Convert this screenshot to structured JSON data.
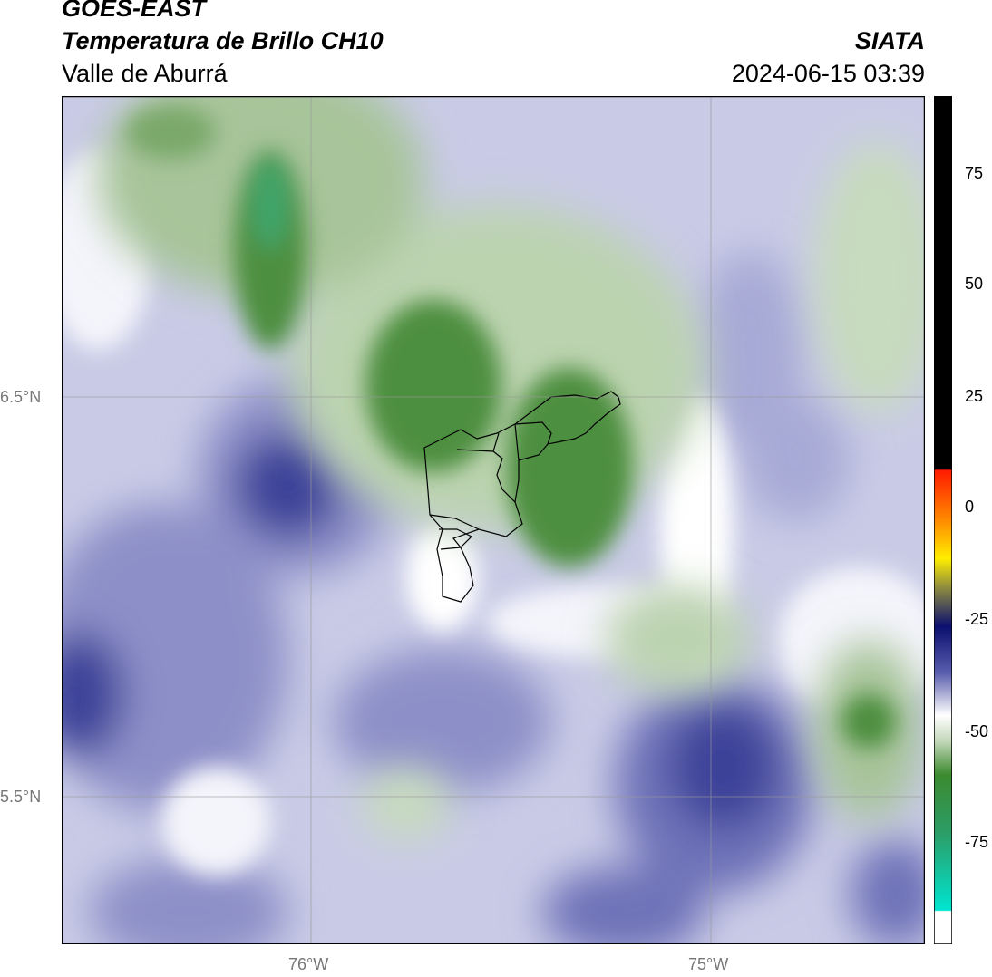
{
  "header": {
    "satellite": "GOES-EAST",
    "product": "Temperatura de Brillo CH10",
    "region": "Valle de Aburrá",
    "agency": "SIATA",
    "datetime": "2024-06-15 03:39"
  },
  "map": {
    "lat_labels": [
      "6.5°N",
      "5.5°N"
    ],
    "lon_labels": [
      "76°W",
      "75°W"
    ]
  },
  "colorbar": {
    "ticks": [
      "75",
      "50",
      "25",
      "0",
      "-25",
      "-50",
      "-75"
    ],
    "colors": {
      "black": "#000000",
      "red": "#ff1a00",
      "orange": "#ff8a00",
      "yellow": "#ffee00",
      "navy": "#0b0f6e",
      "lavender": "#b9bde0",
      "white": "#ffffff",
      "green": "#3b8a2e",
      "teal": "#2bbf8f",
      "cyan": "#00e5d1"
    }
  }
}
